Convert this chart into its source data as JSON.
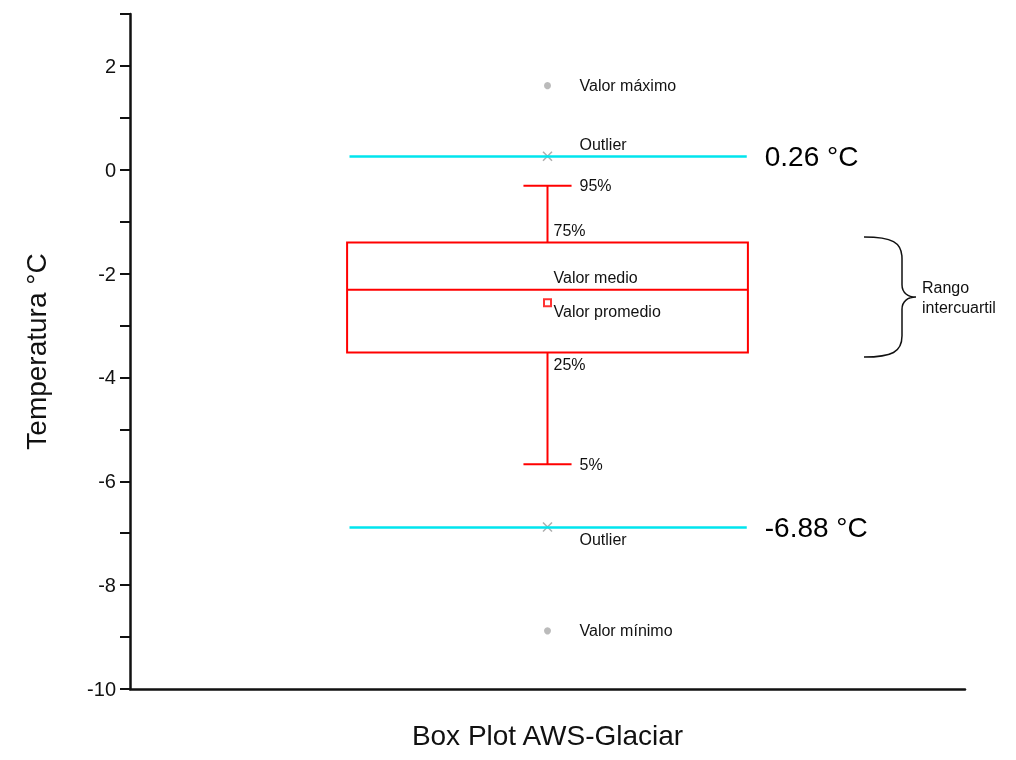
{
  "chart_data": {
    "type": "box",
    "xlabel": null,
    "ylabel": "Temperatura °C",
    "categories": [
      "Box Plot AWS-Glaciar"
    ],
    "color": "#ff0000",
    "boxes": [
      {
        "low": -5.67,
        "q1": -3.52,
        "median": -2.31,
        "q3": -1.4,
        "high": -0.31,
        "mean": -2.56,
        "outliers": [
          0.26,
          -6.88
        ]
      }
    ],
    "series": [
      {
        "type": "scatter",
        "x": [
          "Box Plot AWS-Glaciar",
          "Box Plot AWS-Glaciar"
        ],
        "values": [
          1.62,
          -8.88
        ],
        "color": "#aaaaaa"
      }
    ],
    "ylim": [
      -10,
      3
    ],
    "yticks": [
      -10,
      {
        "value": -9,
        "label": null
      },
      -8,
      {
        "value": -7,
        "label": null
      },
      -6,
      {
        "value": -5,
        "label": null
      },
      -4,
      {
        "value": -3,
        "label": null
      },
      -2,
      {
        "value": -1,
        "label": null
      },
      0,
      {
        "value": 1,
        "label": null
      },
      2,
      {
        "value": 3,
        "label": null
      }
    ],
    "ref_lines": [
      {
        "axis": "y",
        "value": 0.26,
        "label": "0.26 °C",
        "color": "#00e5ee"
      },
      {
        "axis": "y",
        "value": -6.88,
        "label": "-6.88 °C",
        "color": "#00e5ee"
      }
    ],
    "annotations": [
      {
        "text": "Valor máximo",
        "x": "Box Plot AWS-Glaciar",
        "y": 1.62
      },
      {
        "text": "Outlier",
        "x": "Box Plot AWS-Glaciar",
        "y": 0.26
      },
      {
        "text": "95%",
        "x": "Box Plot AWS-Glaciar",
        "y": -0.31
      },
      {
        "text": "75%",
        "x": "Box Plot AWS-Glaciar",
        "y": -1.4
      },
      {
        "text": "Valor medio",
        "x": "Box Plot AWS-Glaciar",
        "y": -2.31
      },
      "Valor promedio",
      {
        "text": "25%",
        "x": "Box Plot AWS-Glaciar",
        "y": -3.52
      },
      {
        "text": "5%",
        "x": "Box Plot AWS-Glaciar",
        "y": -5.67
      },
      {
        "text": "Outlier",
        "x": "Box Plot AWS-Glaciar",
        "y": -6.88
      },
      {
        "text": "Valor mínimo",
        "x": "Box Plot AWS-Glaciar",
        "y": -8.88
      },
      "Rango intercuartil"
    ]
  }
}
